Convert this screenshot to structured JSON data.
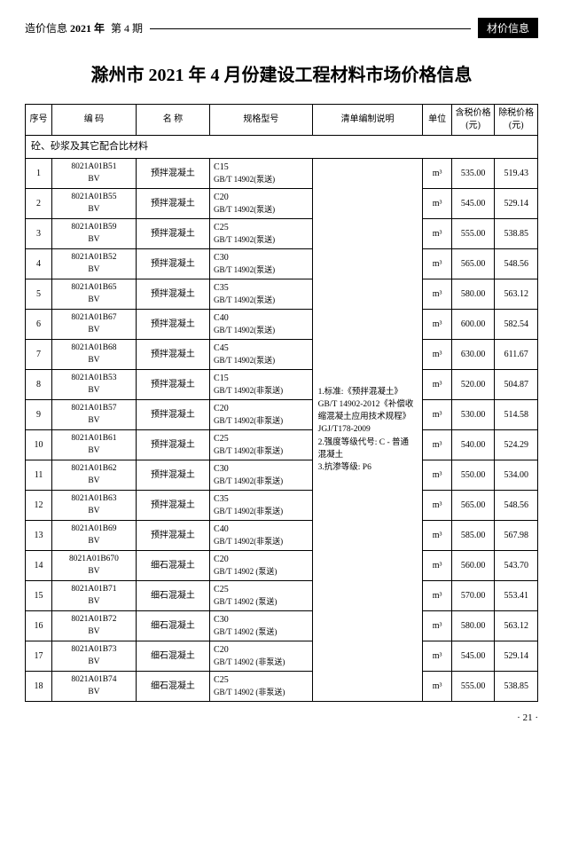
{
  "header": {
    "label": "造价信息",
    "year": "2021 年",
    "issue": "第 4 期",
    "badge": "材价信息"
  },
  "title": "滁州市 2021 年 4 月份建设工程材料市场价格信息",
  "columns": {
    "seq": "序号",
    "code": "编  码",
    "name": "名  称",
    "spec": "规格型号",
    "desc": "清单编制说明",
    "unit": "单位",
    "price_tax": "含税价格(元)",
    "price_notax": "除税价格(元)"
  },
  "section": "砼、砂浆及其它配合比材料",
  "desc_text": "1.标准:《预拌混凝土》GB/T 14902-2012《补偿收缩混凝土应用技术规程》JGJ/T178-2009\n2.强度等级代号: C - 普通混凝土\n3.抗渗等级: P6",
  "rows": [
    {
      "seq": "1",
      "code": "8021A01B51BV",
      "name": "预拌混凝土",
      "spec1": "C15",
      "spec2": "GB/T 14902(泵送)",
      "unit": "m³",
      "p1": "535.00",
      "p2": "519.43"
    },
    {
      "seq": "2",
      "code": "8021A01B55BV",
      "name": "预拌混凝土",
      "spec1": "C20",
      "spec2": "GB/T 14902(泵送)",
      "unit": "m³",
      "p1": "545.00",
      "p2": "529.14"
    },
    {
      "seq": "3",
      "code": "8021A01B59BV",
      "name": "预拌混凝土",
      "spec1": "C25",
      "spec2": "GB/T 14902(泵送)",
      "unit": "m³",
      "p1": "555.00",
      "p2": "538.85"
    },
    {
      "seq": "4",
      "code": "8021A01B52BV",
      "name": "预拌混凝土",
      "spec1": "C30",
      "spec2": "GB/T 14902(泵送)",
      "unit": "m³",
      "p1": "565.00",
      "p2": "548.56"
    },
    {
      "seq": "5",
      "code": "8021A01B65BV",
      "name": "预拌混凝土",
      "spec1": "C35",
      "spec2": "GB/T 14902(泵送)",
      "unit": "m³",
      "p1": "580.00",
      "p2": "563.12"
    },
    {
      "seq": "6",
      "code": "8021A01B67BV",
      "name": "预拌混凝土",
      "spec1": "C40",
      "spec2": "GB/T 14902(泵送)",
      "unit": "m³",
      "p1": "600.00",
      "p2": "582.54"
    },
    {
      "seq": "7",
      "code": "8021A01B68BV",
      "name": "预拌混凝土",
      "spec1": "C45",
      "spec2": "GB/T 14902(泵送)",
      "unit": "m³",
      "p1": "630.00",
      "p2": "611.67"
    },
    {
      "seq": "8",
      "code": "8021A01B53BV",
      "name": "预拌混凝土",
      "spec1": "C15",
      "spec2": "GB/T 14902(非泵送)",
      "unit": "m³",
      "p1": "520.00",
      "p2": "504.87"
    },
    {
      "seq": "9",
      "code": "8021A01B57BV",
      "name": "预拌混凝土",
      "spec1": "C20",
      "spec2": "GB/T 14902(非泵送)",
      "unit": "m³",
      "p1": "530.00",
      "p2": "514.58"
    },
    {
      "seq": "10",
      "code": "8021A01B61BV",
      "name": "预拌混凝土",
      "spec1": "C25",
      "spec2": "GB/T 14902(非泵送)",
      "unit": "m³",
      "p1": "540.00",
      "p2": "524.29"
    },
    {
      "seq": "11",
      "code": "8021A01B62BV",
      "name": "预拌混凝土",
      "spec1": "C30",
      "spec2": "GB/T 14902(非泵送)",
      "unit": "m³",
      "p1": "550.00",
      "p2": "534.00"
    },
    {
      "seq": "12",
      "code": "8021A01B63BV",
      "name": "预拌混凝土",
      "spec1": "C35",
      "spec2": "GB/T 14902(非泵送)",
      "unit": "m³",
      "p1": "565.00",
      "p2": "548.56"
    },
    {
      "seq": "13",
      "code": "8021A01B69BV",
      "name": "预拌混凝土",
      "spec1": "C40",
      "spec2": "GB/T 14902(非泵送)",
      "unit": "m³",
      "p1": "585.00",
      "p2": "567.98"
    },
    {
      "seq": "14",
      "code": "8021A01B670BV",
      "name": "细石混凝土",
      "spec1": "C20",
      "spec2": "GB/T 14902 (泵送)",
      "unit": "m³",
      "p1": "560.00",
      "p2": "543.70"
    },
    {
      "seq": "15",
      "code": "8021A01B71BV",
      "name": "细石混凝土",
      "spec1": "C25",
      "spec2": "GB/T 14902 (泵送)",
      "unit": "m³",
      "p1": "570.00",
      "p2": "553.41"
    },
    {
      "seq": "16",
      "code": "8021A01B72BV",
      "name": "细石混凝土",
      "spec1": "C30",
      "spec2": "GB/T 14902 (泵送)",
      "unit": "m³",
      "p1": "580.00",
      "p2": "563.12"
    },
    {
      "seq": "17",
      "code": "8021A01B73BV",
      "name": "细石混凝土",
      "spec1": "C20",
      "spec2": "GB/T 14902 (非泵送)",
      "unit": "m³",
      "p1": "545.00",
      "p2": "529.14"
    },
    {
      "seq": "18",
      "code": "8021A01B74BV",
      "name": "细石混凝土",
      "spec1": "C25",
      "spec2": "GB/T 14902 (非泵送)",
      "unit": "m³",
      "p1": "555.00",
      "p2": "538.85"
    }
  ],
  "page_num": "· 21 ·"
}
